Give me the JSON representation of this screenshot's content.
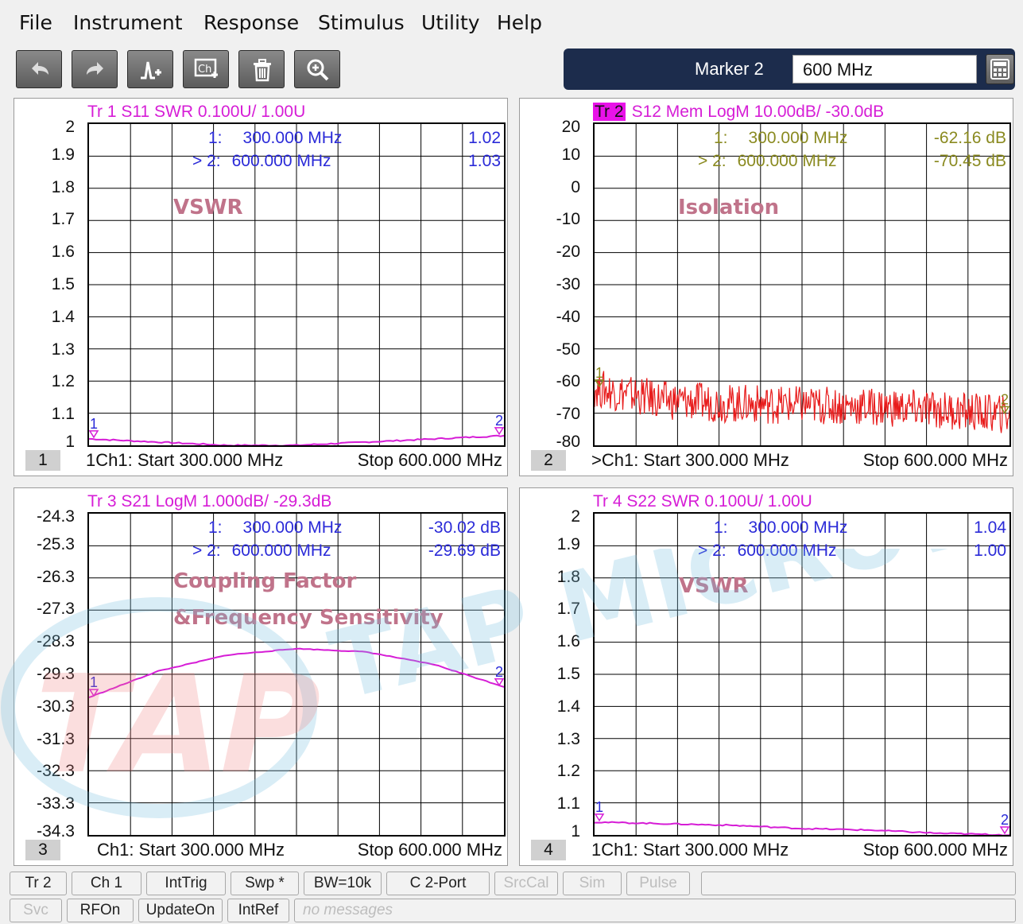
{
  "menu": [
    "File",
    "Instrument",
    "Response",
    "Stimulus",
    "Utility",
    "Help"
  ],
  "toolbar": {
    "icons": [
      "undo-icon",
      "redo-icon",
      "add-marker-icon",
      "channel-icon",
      "trash-icon",
      "zoom-in-icon"
    ],
    "marker_label": "Marker 2",
    "marker_value": "600 MHz"
  },
  "watermark": "TAP MICROWAVE",
  "panels": [
    {
      "num": "1",
      "title": "Tr  1   S11 SWR 0.100U/  1.00U",
      "title_chip": "",
      "yticks": [
        "2",
        "1.9",
        "1.8",
        "1.7",
        "1.6",
        "1.5",
        "1.4",
        "1.3",
        "1.2",
        "1.1",
        "1"
      ],
      "markers": [
        {
          "label": "1:",
          "freq": "300.000  MHz",
          "value": "1.02"
        },
        {
          "label": "> 2:",
          "freq": "600.000  MHz",
          "value": "1.03"
        }
      ],
      "annotation": [
        "VSWR"
      ],
      "start": "1Ch1:  Start  300.000 MHz",
      "stop": "Stop  600.000 MHz",
      "marker_color": "#2a2ad8",
      "trace_color": "#d61dd6"
    },
    {
      "num": "2",
      "title": "S12 Mem LogM 10.00dB/  -30.0dB",
      "title_chip": "Tr  2",
      "yticks": [
        "20",
        "10",
        "0",
        "-10",
        "-20",
        "-30",
        "-40",
        "-50",
        "-60",
        "-70",
        "-80"
      ],
      "markers": [
        {
          "label": "1:",
          "freq": "300.000  MHz",
          "value": "-62.16 dB"
        },
        {
          "label": "> 2:",
          "freq": "600.000  MHz",
          "value": "-70.45 dB"
        }
      ],
      "annotation": [
        "Isolation"
      ],
      "start": ">Ch1:  Start  300.000 MHz",
      "stop": "Stop  600.000 MHz",
      "marker_color": "#8a8a20",
      "trace_color": "#e81c1c"
    },
    {
      "num": "3",
      "title": "Tr  3   S21 LogM 1.000dB/  -29.3dB",
      "title_chip": "",
      "yticks": [
        "-24.3",
        "-25.3",
        "-26.3",
        "-27.3",
        "-28.3",
        "-29.3",
        "-30.3",
        "-31.3",
        "-32.3",
        "-33.3",
        "-34.3"
      ],
      "markers": [
        {
          "label": "1:",
          "freq": "300.000  MHz",
          "value": "-30.02 dB"
        },
        {
          "label": "> 2:",
          "freq": "600.000  MHz",
          "value": "-29.69 dB"
        }
      ],
      "annotation": [
        "Coupling Factor",
        "&Frequency Sensitivity"
      ],
      "start": "Ch1:  Start  300.000 MHz",
      "stop": "Stop  600.000 MHz",
      "marker_color": "#2a2ad8",
      "trace_color": "#d61dd6"
    },
    {
      "num": "4",
      "title": "Tr  4   S22 SWR 0.100U/  1.00U",
      "title_chip": "",
      "yticks": [
        "2",
        "1.9",
        "1.8",
        "1.7",
        "1.6",
        "1.5",
        "1.4",
        "1.3",
        "1.2",
        "1.1",
        "1"
      ],
      "markers": [
        {
          "label": "1:",
          "freq": "300.000  MHz",
          "value": "1.04"
        },
        {
          "label": "> 2:",
          "freq": "600.000  MHz",
          "value": "1.00"
        }
      ],
      "annotation": [
        "VSWR"
      ],
      "start": "1Ch1:  Start  300.000 MHz",
      "stop": "Stop  600.000 MHz",
      "marker_color": "#2a2ad8",
      "trace_color": "#d61dd6"
    }
  ],
  "status_row1": [
    {
      "label": "Tr 2",
      "dim": false
    },
    {
      "label": "Ch 1",
      "dim": false
    },
    {
      "label": "IntTrig",
      "dim": false
    },
    {
      "label": "Swp *",
      "dim": false
    },
    {
      "label": "BW=10k",
      "dim": false
    },
    {
      "label": "C  2-Port",
      "dim": false
    },
    {
      "label": "SrcCal",
      "dim": true
    },
    {
      "label": "Sim",
      "dim": true
    },
    {
      "label": "Pulse",
      "dim": true
    },
    {
      "label": "",
      "dim": false
    }
  ],
  "status_row2": [
    {
      "label": "Svc",
      "dim": true
    },
    {
      "label": "RFOn",
      "dim": false
    },
    {
      "label": "UpdateOn",
      "dim": false
    },
    {
      "label": "IntRef",
      "dim": false
    },
    {
      "label": "no messages",
      "dim": true
    }
  ],
  "chart_data": [
    {
      "type": "line",
      "title": "Tr  1   S11 SWR 0.100U/  1.00U",
      "xlabel": "",
      "ylabel": "",
      "xlim": [
        300,
        600
      ],
      "ylim": [
        1.0,
        2.0
      ],
      "x_unit": "MHz",
      "series": [
        {
          "x": [
            300,
            350,
            400,
            450,
            500,
            550,
            600
          ],
          "values": [
            1.02,
            1.01,
            1.0,
            1.0,
            1.01,
            1.02,
            1.03
          ]
        }
      ],
      "markers": [
        {
          "x": 300,
          "y": 1.02
        },
        {
          "x": 600,
          "y": 1.03
        }
      ]
    },
    {
      "type": "line",
      "title": "S12 Mem LogM 10.00dB/  -30.0dB",
      "xlabel": "",
      "ylabel": "",
      "xlim": [
        300,
        600
      ],
      "ylim": [
        -80,
        20
      ],
      "x_unit": "MHz",
      "series": [
        {
          "x": [
            300,
            350,
            400,
            450,
            500,
            550,
            600
          ],
          "values": [
            -62.16,
            -66,
            -67,
            -67.5,
            -68,
            -69,
            -70.45
          ]
        }
      ],
      "markers": [
        {
          "x": 300,
          "y": -62.16
        },
        {
          "x": 600,
          "y": -70.45
        }
      ]
    },
    {
      "type": "line",
      "title": "Tr  3   S21 LogM 1.000dB/  -29.3dB",
      "xlabel": "",
      "ylabel": "",
      "xlim": [
        300,
        600
      ],
      "ylim": [
        -34.3,
        -24.3
      ],
      "x_unit": "MHz",
      "series": [
        {
          "x": [
            300,
            350,
            400,
            450,
            500,
            550,
            600
          ],
          "values": [
            -30.02,
            -29.2,
            -28.7,
            -28.5,
            -28.6,
            -29.0,
            -29.69
          ]
        }
      ],
      "markers": [
        {
          "x": 300,
          "y": -30.02
        },
        {
          "x": 600,
          "y": -29.69
        }
      ]
    },
    {
      "type": "line",
      "title": "Tr  4   S22 SWR 0.100U/  1.00U",
      "xlabel": "",
      "ylabel": "",
      "xlim": [
        300,
        600
      ],
      "ylim": [
        1.0,
        2.0
      ],
      "x_unit": "MHz",
      "series": [
        {
          "x": [
            300,
            350,
            400,
            450,
            500,
            550,
            600
          ],
          "values": [
            1.04,
            1.035,
            1.03,
            1.02,
            1.015,
            1.005,
            1.0
          ]
        }
      ],
      "markers": [
        {
          "x": 300,
          "y": 1.04
        },
        {
          "x": 600,
          "y": 1.0
        }
      ]
    }
  ]
}
